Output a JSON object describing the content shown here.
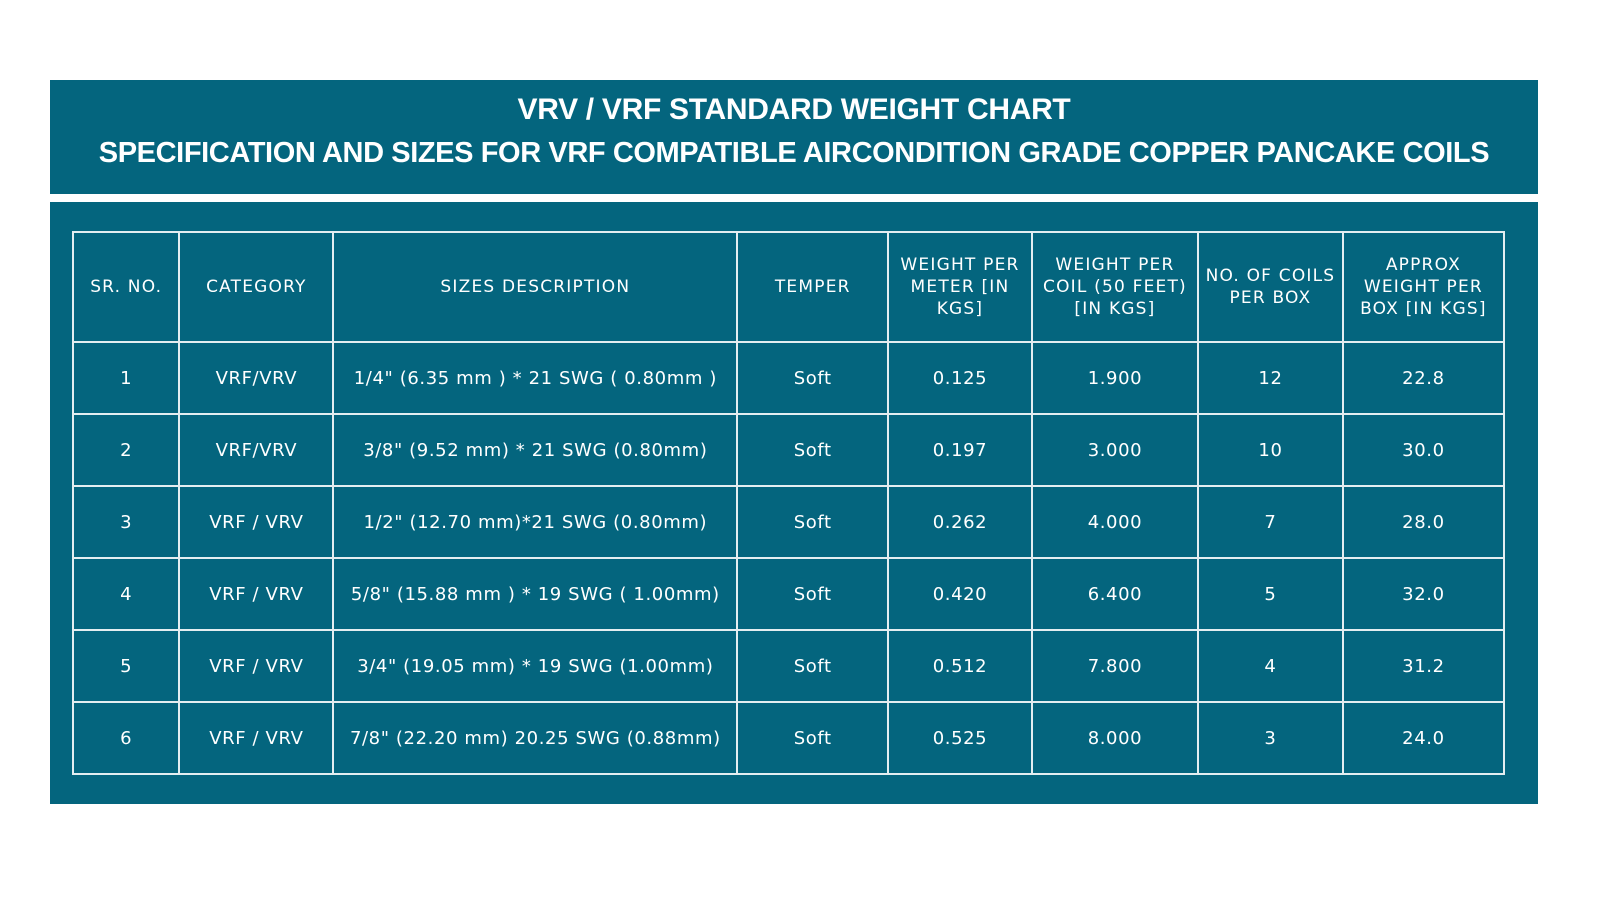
{
  "header": {
    "title": "VRV / VRF STANDARD WEIGHT CHART",
    "subtitle": "SPECIFICATION AND SIZES FOR VRF COMPATIBLE AIRCONDITION GRADE COPPER PANCAKE COILS"
  },
  "colors": {
    "band": "#04657e",
    "text": "#ffffff",
    "grid": "#e4eef1"
  },
  "table": {
    "columns": [
      "SR. NO.",
      "CATEGORY",
      "SIZES DESCRIPTION",
      "TEMPER",
      "WEIGHT PER METER [IN KGS]",
      "WEIGHT PER COIL (50 FEET) [IN KGS]",
      "NO. OF COILS PER BOX",
      "APPROX WEIGHT PER BOX [IN KGS]"
    ],
    "rows": [
      [
        "1",
        "VRF/VRV",
        "1/4\" (6.35 mm ) * 21 SWG ( 0.80mm )",
        "Soft",
        "0.125",
        "1.900",
        "12",
        "22.8"
      ],
      [
        "2",
        "VRF/VRV",
        "3/8\" (9.52 mm) * 21 SWG (0.80mm)",
        "Soft",
        "0.197",
        "3.000",
        "10",
        "30.0"
      ],
      [
        "3",
        "VRF / VRV",
        "1/2\" (12.70 mm)*21 SWG (0.80mm)",
        "Soft",
        "0.262",
        "4.000",
        "7",
        "28.0"
      ],
      [
        "4",
        "VRF / VRV",
        "5/8\" (15.88 mm ) * 19 SWG ( 1.00mm)",
        "Soft",
        "0.420",
        "6.400",
        "5",
        "32.0"
      ],
      [
        "5",
        "VRF / VRV",
        "3/4\" (19.05 mm) * 19 SWG (1.00mm)",
        "Soft",
        "0.512",
        "7.800",
        "4",
        "31.2"
      ],
      [
        "6",
        "VRF / VRV",
        "7/8\" (22.20 mm) 20.25 SWG (0.88mm)",
        "Soft",
        "0.525",
        "8.000",
        "3",
        "24.0"
      ]
    ]
  }
}
